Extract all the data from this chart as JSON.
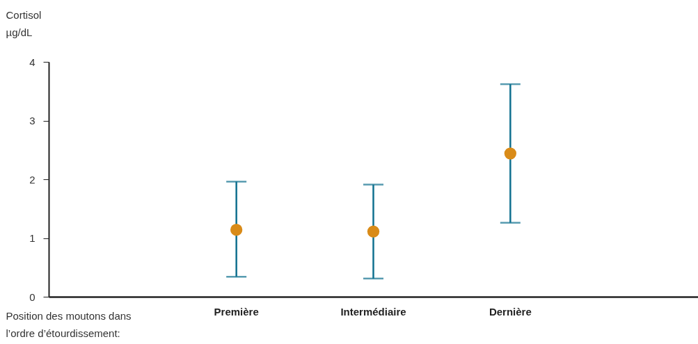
{
  "chart_data": {
    "type": "scatter",
    "xlabel": "Position des moutons dans l’ordre d’étourdissement:",
    "ylabel": "Cortisol µg/dL",
    "categories": [
      "Première",
      "Intermédiaire",
      "Dernière"
    ],
    "series": [
      {
        "color": "#d98b18",
        "values": [
          1.14,
          1.11,
          2.44
        ],
        "errors": [
          [
            0.34,
            1.96
          ],
          [
            0.31,
            1.91
          ],
          [
            1.26,
            3.62
          ]
        ]
      }
    ],
    "ylim": [
      0,
      4
    ],
    "yticks": [
      0,
      1,
      2,
      3,
      4
    ],
    "grid": false,
    "marker": "circle"
  }
}
